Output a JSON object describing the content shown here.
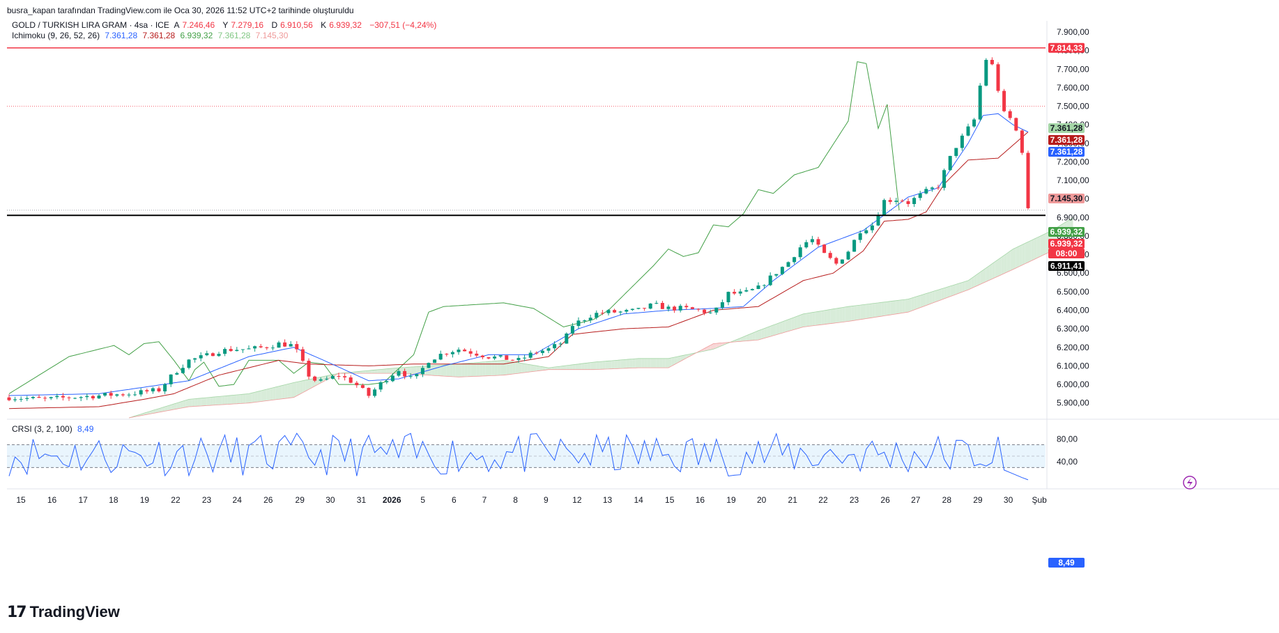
{
  "header": {
    "published_by": "busra_kapan tarafından TradingView.com ile Oca 30, 2026 11:52 UTC+2 tarihinde oluşturuldu"
  },
  "legend": {
    "symbol": "GOLD / TURKISH LIRA GRAM · 4sa · ICE",
    "open_label": "A",
    "open": "7.246,46",
    "high_label": "Y",
    "high": "7.279,16",
    "low_label": "D",
    "low": "6.910,56",
    "close_label": "K",
    "close": "6.939,32",
    "change": "−307,51 (−4,24%)",
    "ichimoku_label": "Ichimoku (9, 26, 52, 26)",
    "ichimoku_values": [
      "7.361,28",
      "7.361,28",
      "6.939,32",
      "7.361,28",
      "7.145,30"
    ],
    "crsi_label": "CRSI (3, 2, 100)",
    "crsi_value": "8,49"
  },
  "price_tags": {
    "resistance": "7.814,33",
    "senkou_a": "7.361,28",
    "kijun": "7.361,28",
    "tenkan": "7.361,28",
    "senkou_b": "7.145,30",
    "chikou": "6.939,32",
    "last": "6.939,32",
    "countdown": "08:00",
    "support": "6.911,41",
    "crsi": "8,49"
  },
  "colors": {
    "up": "#089981",
    "down": "#f23645",
    "tenkan": "#2962ff",
    "kijun": "#b71c1c",
    "chikou": "#43a047",
    "cloud_bull": "#d8ecd9",
    "cloud_bear": "#f8d7d7",
    "crsi": "#2962ff"
  },
  "brand": "TradingView",
  "chart_data": [
    {
      "type": "candlestick",
      "title": "GOLD / TURKISH LIRA GRAM · 4sa · ICE",
      "ylim": [
        5820,
        7960
      ],
      "y_ticks": [
        "7.900,00",
        "7.800,00",
        "7.700,00",
        "7.600,00",
        "7.500,00",
        "7.400,00",
        "7.300,00",
        "7.200,00",
        "7.100,00",
        "7.000,00",
        "6.900,00",
        "6.800,00",
        "6.700,00",
        "6.600,00",
        "6.500,00",
        "6.400,00",
        "6.300,00",
        "6.200,00",
        "6.100,00",
        "6.000,00",
        "5.900,00"
      ],
      "x_ticks": [
        "15",
        "16",
        "17",
        "18",
        "19",
        "22",
        "23",
        "24",
        "26",
        "29",
        "30",
        "31",
        "2026",
        "5",
        "6",
        "7",
        "8",
        "9",
        "12",
        "13",
        "14",
        "15",
        "16",
        "19",
        "20",
        "21",
        "22",
        "23",
        "26",
        "27",
        "28",
        "29",
        "30",
        "Şub"
      ],
      "horizontal_lines": [
        7814.33,
        6911.41,
        7500
      ],
      "close_anchors": [
        [
          0,
          5930
        ],
        [
          12,
          5920
        ],
        [
          20,
          5930
        ],
        [
          30,
          5940
        ],
        [
          40,
          5950
        ],
        [
          50,
          5970
        ],
        [
          55,
          6060
        ],
        [
          60,
          6130
        ],
        [
          65,
          6150
        ],
        [
          70,
          6180
        ],
        [
          75,
          6190
        ],
        [
          80,
          6190
        ],
        [
          85,
          6200
        ],
        [
          90,
          6220
        ],
        [
          95,
          6210
        ],
        [
          100,
          6050
        ],
        [
          103,
          6010
        ],
        [
          110,
          6050
        ],
        [
          115,
          6010
        ],
        [
          120,
          5940
        ],
        [
          125,
          6020
        ],
        [
          130,
          6080
        ],
        [
          135,
          6020
        ],
        [
          140,
          6130
        ],
        [
          145,
          6170
        ],
        [
          150,
          6190
        ],
        [
          155,
          6170
        ],
        [
          160,
          6150
        ],
        [
          165,
          6140
        ],
        [
          170,
          6130
        ],
        [
          175,
          6170
        ],
        [
          180,
          6190
        ],
        [
          185,
          6230
        ],
        [
          188,
          6320
        ],
        [
          195,
          6380
        ],
        [
          200,
          6390
        ],
        [
          205,
          6390
        ],
        [
          210,
          6400
        ],
        [
          215,
          6430
        ],
        [
          220,
          6410
        ],
        [
          225,
          6410
        ],
        [
          230,
          6400
        ],
        [
          235,
          6380
        ],
        [
          240,
          6490
        ],
        [
          245,
          6490
        ],
        [
          250,
          6520
        ],
        [
          255,
          6590
        ],
        [
          260,
          6660
        ],
        [
          265,
          6760
        ],
        [
          268,
          6780
        ],
        [
          272,
          6700
        ],
        [
          276,
          6650
        ],
        [
          280,
          6720
        ],
        [
          284,
          6830
        ],
        [
          288,
          6860
        ],
        [
          292,
          6990
        ],
        [
          297,
          7000
        ],
        [
          300,
          6980
        ],
        [
          303,
          7010
        ],
        [
          306,
          7040
        ],
        [
          310,
          7070
        ],
        [
          315,
          7260
        ],
        [
          320,
          7380
        ],
        [
          323,
          7450
        ],
        [
          325,
          7770
        ],
        [
          328,
          7720
        ],
        [
          332,
          7460
        ],
        [
          335,
          7420
        ],
        [
          338,
          7260
        ],
        [
          340,
          6939
        ]
      ],
      "tenkan_anchors": [
        [
          0,
          5940
        ],
        [
          30,
          5950
        ],
        [
          60,
          6020
        ],
        [
          80,
          6150
        ],
        [
          95,
          6200
        ],
        [
          105,
          6130
        ],
        [
          120,
          6020
        ],
        [
          130,
          6030
        ],
        [
          145,
          6100
        ],
        [
          160,
          6160
        ],
        [
          175,
          6160
        ],
        [
          190,
          6300
        ],
        [
          205,
          6380
        ],
        [
          220,
          6400
        ],
        [
          235,
          6410
        ],
        [
          245,
          6420
        ],
        [
          255,
          6560
        ],
        [
          270,
          6740
        ],
        [
          285,
          6830
        ],
        [
          300,
          7010
        ],
        [
          310,
          7060
        ],
        [
          320,
          7300
        ],
        [
          325,
          7450
        ],
        [
          330,
          7460
        ],
        [
          335,
          7400
        ],
        [
          340,
          7361
        ]
      ],
      "kijun_anchors": [
        [
          0,
          5870
        ],
        [
          30,
          5880
        ],
        [
          45,
          5920
        ],
        [
          55,
          5950
        ],
        [
          70,
          6050
        ],
        [
          90,
          6130
        ],
        [
          100,
          6110
        ],
        [
          120,
          6100
        ],
        [
          135,
          6110
        ],
        [
          150,
          6110
        ],
        [
          165,
          6110
        ],
        [
          180,
          6150
        ],
        [
          188,
          6270
        ],
        [
          205,
          6300
        ],
        [
          220,
          6310
        ],
        [
          235,
          6400
        ],
        [
          250,
          6420
        ],
        [
          265,
          6560
        ],
        [
          275,
          6600
        ],
        [
          285,
          6720
        ],
        [
          292,
          6880
        ],
        [
          300,
          6890
        ],
        [
          306,
          6930
        ],
        [
          312,
          7080
        ],
        [
          320,
          7210
        ],
        [
          330,
          7220
        ],
        [
          340,
          7361
        ]
      ],
      "chikou_anchors": [
        [
          0,
          5950
        ],
        [
          10,
          6050
        ],
        [
          20,
          6150
        ],
        [
          30,
          6190
        ],
        [
          35,
          6210
        ],
        [
          40,
          6160
        ],
        [
          45,
          6220
        ],
        [
          50,
          6230
        ],
        [
          55,
          6130
        ],
        [
          60,
          6020
        ],
        [
          62,
          6080
        ],
        [
          65,
          6120
        ],
        [
          70,
          5990
        ],
        [
          75,
          6000
        ],
        [
          80,
          6130
        ],
        [
          90,
          6130
        ],
        [
          95,
          6060
        ],
        [
          100,
          6120
        ],
        [
          105,
          6110
        ],
        [
          110,
          6000
        ],
        [
          120,
          6000
        ],
        [
          125,
          6010
        ],
        [
          135,
          6160
        ],
        [
          140,
          6390
        ],
        [
          145,
          6420
        ],
        [
          155,
          6430
        ],
        [
          165,
          6440
        ],
        [
          175,
          6410
        ],
        [
          185,
          6310
        ],
        [
          195,
          6350
        ],
        [
          200,
          6400
        ],
        [
          210,
          6560
        ],
        [
          215,
          6640
        ],
        [
          220,
          6730
        ],
        [
          225,
          6690
        ],
        [
          230,
          6710
        ],
        [
          235,
          6860
        ],
        [
          240,
          6850
        ],
        [
          245,
          6920
        ],
        [
          250,
          7050
        ],
        [
          255,
          7030
        ],
        [
          262,
          7130
        ],
        [
          270,
          7170
        ],
        [
          280,
          7420
        ],
        [
          283,
          7740
        ],
        [
          286,
          7730
        ],
        [
          290,
          7380
        ],
        [
          293,
          7510
        ],
        [
          297,
          6939
        ]
      ],
      "span_a_anchors": [
        [
          40,
          5820
        ],
        [
          60,
          5920
        ],
        [
          80,
          5950
        ],
        [
          95,
          6010
        ],
        [
          110,
          6060
        ],
        [
          130,
          6090
        ],
        [
          150,
          6110
        ],
        [
          165,
          6130
        ],
        [
          180,
          6090
        ],
        [
          195,
          6120
        ],
        [
          210,
          6140
        ],
        [
          220,
          6140
        ],
        [
          235,
          6190
        ],
        [
          250,
          6290
        ],
        [
          265,
          6380
        ],
        [
          280,
          6420
        ],
        [
          300,
          6460
        ],
        [
          320,
          6560
        ],
        [
          335,
          6730
        ],
        [
          348,
          6830
        ],
        [
          355,
          6900
        ]
      ],
      "span_b_anchors": [
        [
          40,
          5820
        ],
        [
          60,
          5880
        ],
        [
          80,
          5900
        ],
        [
          95,
          5930
        ],
        [
          110,
          6060
        ],
        [
          130,
          6060
        ],
        [
          150,
          6040
        ],
        [
          165,
          6050
        ],
        [
          180,
          6080
        ],
        [
          195,
          6080
        ],
        [
          210,
          6090
        ],
        [
          220,
          6090
        ],
        [
          235,
          6220
        ],
        [
          250,
          6240
        ],
        [
          265,
          6310
        ],
        [
          280,
          6340
        ],
        [
          300,
          6390
        ],
        [
          320,
          6510
        ],
        [
          335,
          6620
        ],
        [
          348,
          6720
        ],
        [
          355,
          6720
        ]
      ]
    },
    {
      "type": "line",
      "title": "CRSI (3, 2, 100)",
      "ylim": [
        0,
        100
      ],
      "y_ticks": [
        "80,00",
        "40,00"
      ],
      "band": [
        30,
        70
      ],
      "mid_line": 50,
      "last_value": 8.49
    }
  ]
}
